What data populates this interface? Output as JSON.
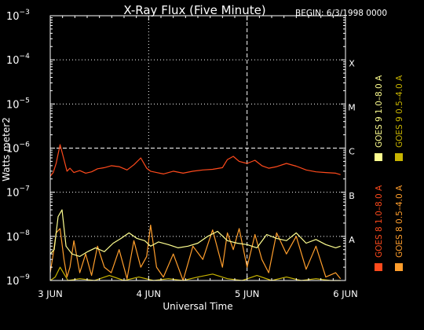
{
  "chart_data": {
    "type": "line",
    "title": "X-Ray Flux (Five Minute)",
    "begin_label": "BEGIN: 6/3/1998 0000",
    "xlabel": "Universal Time",
    "ylabel": "Watts meter2",
    "x_ticks": [
      "3 JUN",
      "4 JUN",
      "5 JUN",
      "6 JUN"
    ],
    "x_range_days": [
      0,
      3
    ],
    "y_scale": "log",
    "ylim": [
      1e-09,
      0.001
    ],
    "y_ticks": [
      {
        "base": "10",
        "exp": "−3"
      },
      {
        "base": "10",
        "exp": "−4"
      },
      {
        "base": "10",
        "exp": "−5"
      },
      {
        "base": "10",
        "exp": "−6"
      },
      {
        "base": "10",
        "exp": "−7"
      },
      {
        "base": "10",
        "exp": "−8"
      },
      {
        "base": "10",
        "exp": "−9"
      }
    ],
    "flare_classes": [
      {
        "label": "X",
        "level_exp": -4
      },
      {
        "label": "M",
        "level_exp": -5
      },
      {
        "label": "C",
        "level_exp": -6
      },
      {
        "label": "B",
        "level_exp": -7
      },
      {
        "label": "A",
        "level_exp": -8
      }
    ],
    "grid": true,
    "legend_position": "right, vertical",
    "legend": [
      {
        "name": "GOES 8 1.0–8.0 A",
        "color": "#ff4a1c"
      },
      {
        "name": "GOES 8 0.5–4.0 A",
        "color": "#ff9e2c"
      },
      {
        "name": "GOES 9 1.0–8.0 A",
        "color": "#ffff90"
      },
      {
        "name": "GOES 9 0.5–4.0 A",
        "color": "#c8b400"
      }
    ],
    "series": [
      {
        "name": "GOES 8 1.0–8.0 A",
        "color": "#ff4a1c",
        "x": [
          0.0,
          0.03,
          0.06,
          0.1,
          0.14,
          0.17,
          0.2,
          0.24,
          0.3,
          0.36,
          0.42,
          0.48,
          0.55,
          0.62,
          0.7,
          0.78,
          0.85,
          0.92,
          0.98,
          1.02,
          1.08,
          1.15,
          1.25,
          1.35,
          1.45,
          1.55,
          1.65,
          1.75,
          1.8,
          1.86,
          1.92,
          2.0,
          2.08,
          2.15,
          2.22,
          2.3,
          2.4,
          2.5,
          2.6,
          2.7,
          2.8,
          2.9,
          2.95
        ],
        "y": [
          2.3e-07,
          2.8e-07,
          4.5e-07,
          1.2e-06,
          5.5e-07,
          3e-07,
          3.5e-07,
          2.8e-07,
          3.1e-07,
          2.7e-07,
          2.9e-07,
          3.4e-07,
          3.6e-07,
          4e-07,
          3.8e-07,
          3.2e-07,
          4.2e-07,
          6e-07,
          3.5e-07,
          3e-07,
          2.8e-07,
          2.6e-07,
          3e-07,
          2.7e-07,
          3e-07,
          3.2e-07,
          3.3e-07,
          3.6e-07,
          5.5e-07,
          6.5e-07,
          5e-07,
          4.5e-07,
          5.3e-07,
          4e-07,
          3.5e-07,
          3.8e-07,
          4.5e-07,
          3.9e-07,
          3.2e-07,
          2.9e-07,
          2.8e-07,
          2.7e-07,
          2.5e-07
        ]
      },
      {
        "name": "GOES 8 0.5–4.0 A",
        "color": "#ff9e2c",
        "x": [
          0.0,
          0.03,
          0.06,
          0.1,
          0.14,
          0.17,
          0.2,
          0.24,
          0.3,
          0.36,
          0.42,
          0.48,
          0.55,
          0.62,
          0.7,
          0.78,
          0.85,
          0.92,
          0.98,
          1.02,
          1.08,
          1.15,
          1.25,
          1.35,
          1.45,
          1.55,
          1.65,
          1.75,
          1.8,
          1.86,
          1.92,
          2.0,
          2.08,
          2.15,
          2.22,
          2.3,
          2.4,
          2.5,
          2.6,
          2.7,
          2.8,
          2.9,
          2.95
        ],
        "y": [
          1.5e-09,
          4e-09,
          1.2e-08,
          1.5e-08,
          3e-09,
          1.2e-09,
          2e-09,
          8e-09,
          1.5e-09,
          4e-09,
          1.3e-09,
          6e-09,
          2e-09,
          1.5e-09,
          5e-09,
          1.1e-09,
          8e-09,
          2e-09,
          3.5e-09,
          1.8e-08,
          2e-09,
          1.2e-09,
          4e-09,
          1e-09,
          6e-09,
          3e-09,
          1.4e-08,
          2e-09,
          1.2e-08,
          5e-09,
          1.5e-08,
          2e-09,
          1.1e-08,
          3e-09,
          1.5e-09,
          1.2e-08,
          4e-09,
          1e-08,
          1.8e-09,
          6e-09,
          1.2e-09,
          1.5e-09,
          1.1e-09
        ]
      },
      {
        "name": "GOES 9 1.0–8.0 A",
        "color": "#ffff90",
        "x": [
          0.0,
          0.04,
          0.08,
          0.12,
          0.16,
          0.22,
          0.3,
          0.38,
          0.46,
          0.55,
          0.64,
          0.72,
          0.8,
          0.88,
          0.96,
          1.02,
          1.1,
          1.2,
          1.3,
          1.4,
          1.5,
          1.6,
          1.7,
          1.8,
          1.9,
          2.0,
          2.1,
          2.2,
          2.3,
          2.4,
          2.5,
          2.6,
          2.7,
          2.8,
          2.9,
          2.95
        ],
        "y": [
          4e-09,
          5e-09,
          2.8e-08,
          4e-08,
          6e-09,
          4e-09,
          3.5e-09,
          4.5e-09,
          5.5e-09,
          4.5e-09,
          7e-09,
          9e-09,
          1.2e-08,
          9e-09,
          8e-09,
          6e-09,
          7.5e-09,
          6.5e-09,
          5.5e-09,
          6e-09,
          7e-09,
          1e-08,
          1.3e-08,
          8e-09,
          7e-09,
          6.5e-09,
          5.5e-09,
          1.1e-08,
          9e-09,
          8e-09,
          1.2e-08,
          7e-09,
          8.5e-09,
          6.5e-09,
          5.5e-09,
          6e-09
        ]
      },
      {
        "name": "GOES 9 0.5–4.0 A",
        "color": "#c8b400",
        "x": [
          0.0,
          0.05,
          0.1,
          0.18,
          0.3,
          0.45,
          0.6,
          0.75,
          0.9,
          1.05,
          1.2,
          1.35,
          1.5,
          1.65,
          1.8,
          1.95,
          2.1,
          2.25,
          2.4,
          2.55,
          2.7,
          2.85,
          2.95
        ],
        "y": [
          1e-09,
          1.2e-09,
          2e-09,
          1e-09,
          1.1e-09,
          1e-09,
          1.3e-09,
          1e-09,
          1.2e-09,
          1e-09,
          1.1e-09,
          1e-09,
          1.2e-09,
          1.4e-09,
          1.1e-09,
          1e-09,
          1.3e-09,
          1e-09,
          1.2e-09,
          1e-09,
          1.1e-09,
          1e-09,
          1e-09
        ]
      }
    ]
  }
}
